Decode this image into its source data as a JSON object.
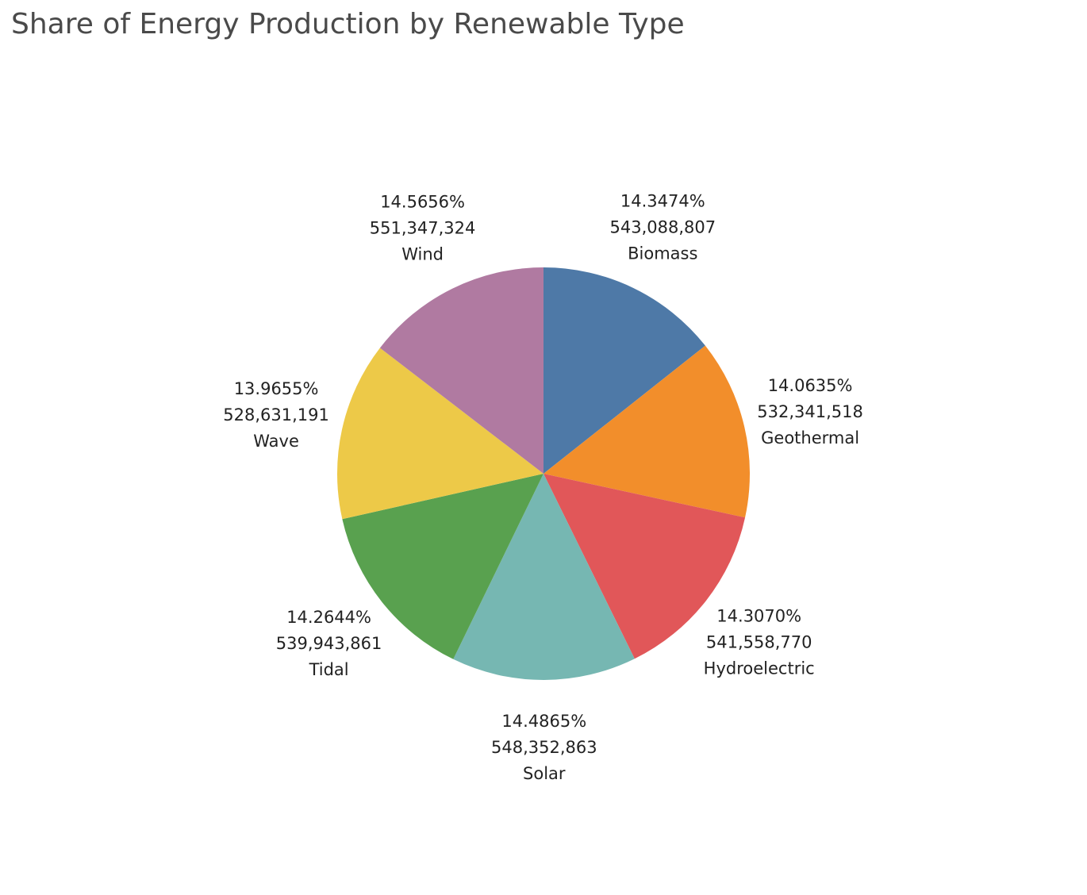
{
  "chart_data": {
    "type": "pie",
    "title": "Share of Energy Production by Renewable Type",
    "slices": [
      {
        "name": "Biomass",
        "value": 543088807,
        "value_label": "543,088,807",
        "percent_label": "14.3474%",
        "color": "#4e79a7"
      },
      {
        "name": "Geothermal",
        "value": 532341518,
        "value_label": "532,341,518",
        "percent_label": "14.0635%",
        "color": "#f28e2b"
      },
      {
        "name": "Hydroelectric",
        "value": 541558770,
        "value_label": "541,558,770",
        "percent_label": "14.3070%",
        "color": "#e15759"
      },
      {
        "name": "Solar",
        "value": 548352863,
        "value_label": "548,352,863",
        "percent_label": "14.4865%",
        "color": "#76b7b2"
      },
      {
        "name": "Tidal",
        "value": 539943861,
        "value_label": "539,943,861",
        "percent_label": "14.2644%",
        "color": "#59a14f"
      },
      {
        "name": "Wave",
        "value": 528631191,
        "value_label": "528,631,191",
        "percent_label": "13.9655%",
        "color": "#edc948"
      },
      {
        "name": "Wind",
        "value": 551347324,
        "value_label": "551,347,324",
        "percent_label": "14.5656%",
        "color": "#b07aa1"
      }
    ],
    "start_angle": "12 o'clock",
    "direction": "clockwise",
    "legend": "none"
  }
}
